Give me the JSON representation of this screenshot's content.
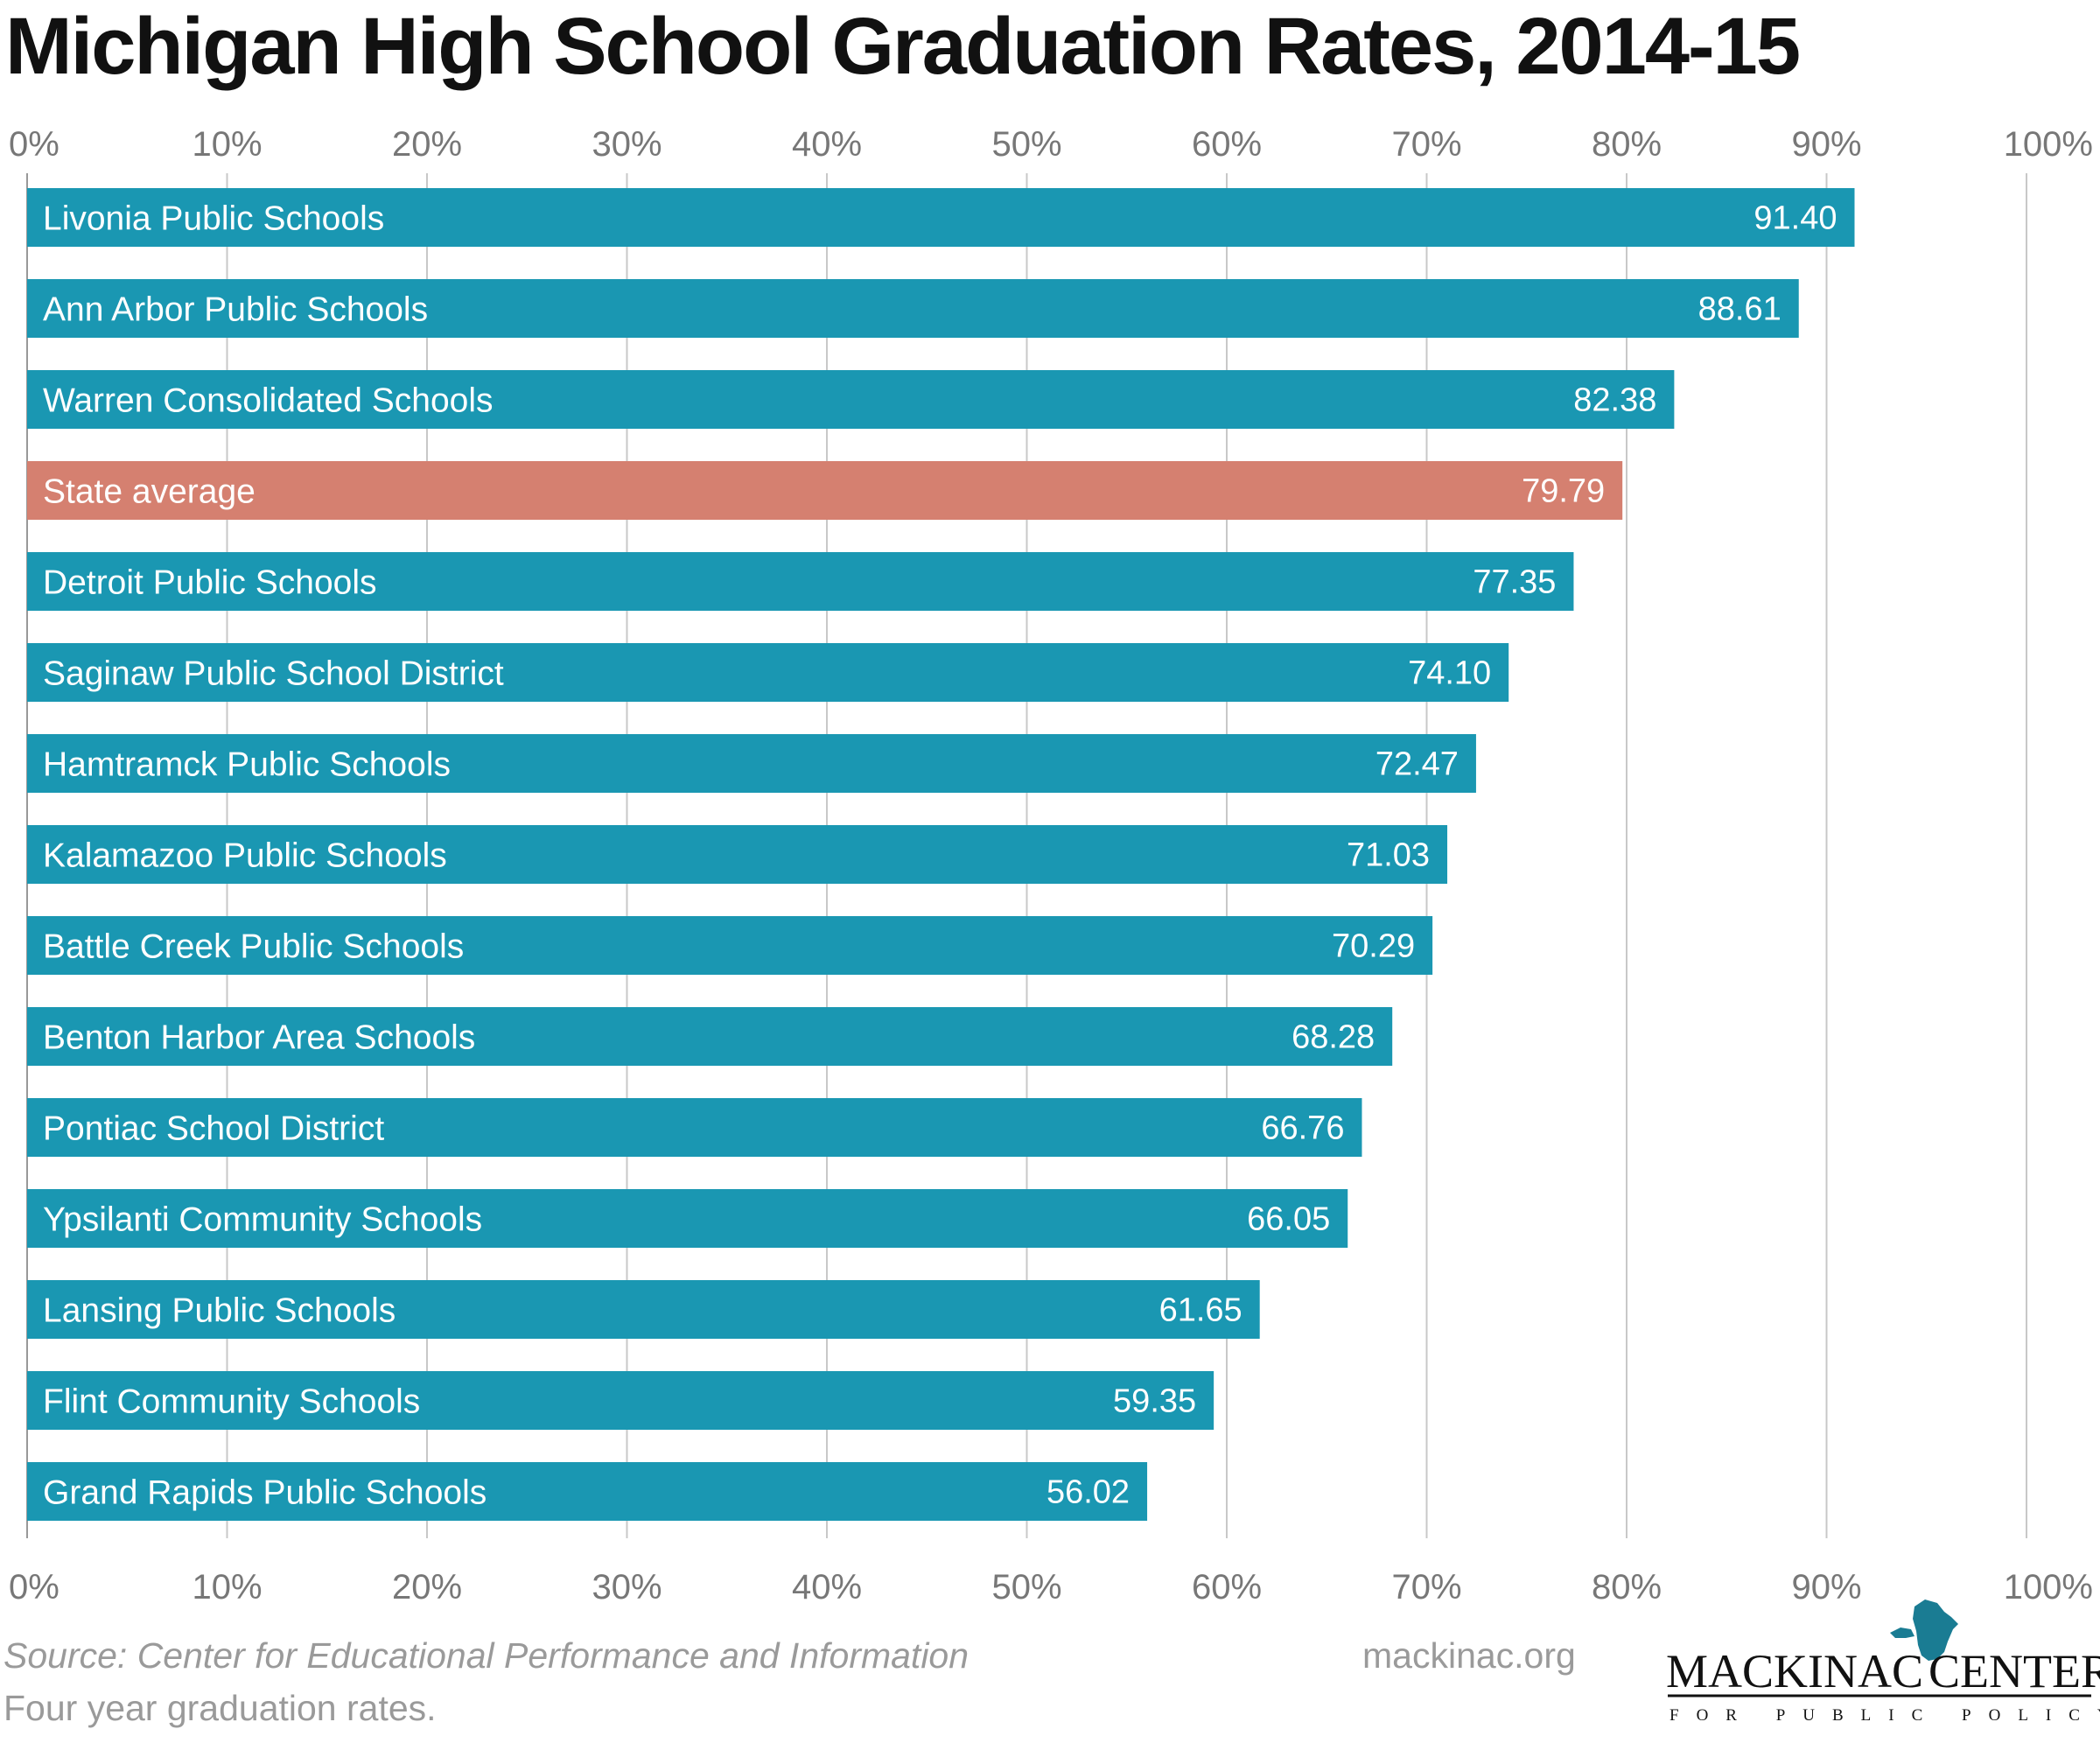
{
  "chart_data": {
    "type": "bar",
    "orientation": "horizontal",
    "title": "Michigan High School Graduation Rates, 2014-15",
    "categories": [
      "Livonia Public Schools",
      "Ann Arbor Public Schools",
      "Warren Consolidated Schools",
      "State average",
      "Detroit Public Schools",
      "Saginaw Public School District",
      "Hamtramck Public Schools",
      "Kalamazoo Public Schools",
      "Battle Creek Public Schools",
      "Benton Harbor Area Schools",
      "Pontiac School District",
      "Ypsilanti Community Schools",
      "Lansing Public Schools",
      "Flint Community Schools",
      "Grand Rapids Public Schools"
    ],
    "values": [
      91.4,
      88.61,
      82.38,
      79.79,
      77.35,
      74.1,
      72.47,
      71.03,
      70.29,
      68.28,
      66.76,
      66.05,
      61.65,
      59.35,
      56.02
    ],
    "value_labels": [
      "91.40",
      "88.61",
      "82.38",
      "79.79",
      "77.35",
      "74.10",
      "72.47",
      "71.03",
      "70.29",
      "68.28",
      "66.76",
      "66.05",
      "61.65",
      "59.35",
      "56.02"
    ],
    "highlight_category": "State average",
    "xlim": [
      0,
      100
    ],
    "ticks": [
      0,
      10,
      20,
      30,
      40,
      50,
      60,
      70,
      80,
      90,
      100
    ],
    "tick_labels": [
      "0%",
      "10%",
      "20%",
      "30%",
      "40%",
      "50%",
      "60%",
      "70%",
      "80%",
      "90%",
      "100%"
    ],
    "tick_labels_position": "top and bottom",
    "grid": true,
    "bar_color": "#1a97b2",
    "highlight_color": "#d58070",
    "grid_color": "#c8c8c8"
  },
  "footer": {
    "source": "Source: Center for Educational Performance and Information",
    "note": "Four year graduation rates.",
    "website": "mackinac.org",
    "logo_text_left": "MACKINAC",
    "logo_text_right": "CENTER",
    "logo_subtext": "FOR PUBLIC POLICY",
    "logo_icon": "michigan-map-icon"
  }
}
